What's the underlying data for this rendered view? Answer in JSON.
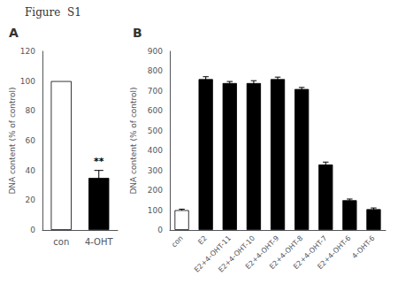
{
  "title": "Figure  S1",
  "chart_data": [
    {
      "type": "bar",
      "title": "A",
      "categories": [
        "con",
        "4-OHT"
      ],
      "values": [
        100,
        35
      ],
      "errors": [
        0,
        5
      ],
      "colors": [
        "white",
        "black"
      ],
      "ylabel": "DNA content (% of control)",
      "ylim": [
        0,
        120
      ],
      "yticks": [
        0,
        20,
        40,
        60,
        80,
        100,
        120
      ],
      "annotations": [
        {
          "text": "**",
          "x": "4-OHT",
          "y": 43
        }
      ]
    },
    {
      "type": "bar",
      "title": "B",
      "categories": [
        "con",
        "E2",
        "E2+4-OHT-11",
        "E2+4-OHT-10",
        "E2+4-OHT-9",
        "E2+4-OHT-8",
        "E2+4-OHT-7",
        "E2+4-OHT-6",
        "4-OHT-6"
      ],
      "values": [
        100,
        760,
        740,
        740,
        760,
        710,
        330,
        150,
        105
      ],
      "errors": [
        5,
        12,
        8,
        12,
        10,
        8,
        12,
        6,
        6
      ],
      "colors": [
        "white",
        "black",
        "black",
        "black",
        "black",
        "black",
        "black",
        "black",
        "black"
      ],
      "ylabel": "DNA content (% of control)",
      "ylim": [
        0,
        900
      ],
      "yticks": [
        0,
        100,
        200,
        300,
        400,
        500,
        600,
        700,
        800,
        900
      ]
    }
  ]
}
